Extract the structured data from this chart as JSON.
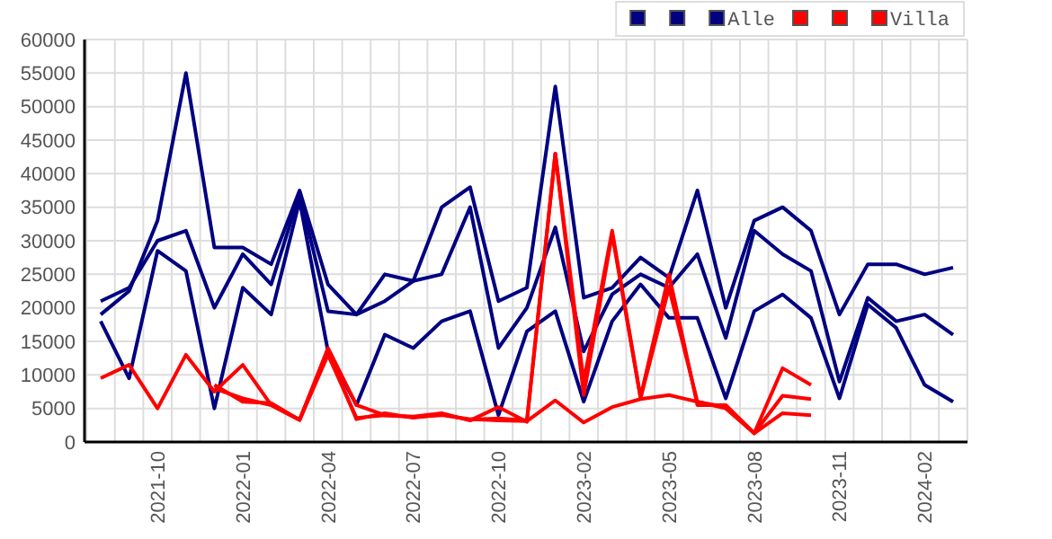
{
  "chart_data": {
    "type": "line",
    "categories": [
      null,
      null,
      "2021-10",
      null,
      null,
      "2022-01",
      null,
      null,
      "2022-04",
      null,
      null,
      "2022-07",
      null,
      null,
      "2022-10",
      null,
      null,
      "2023-02",
      null,
      null,
      "2023-05",
      null,
      null,
      "2023-08",
      null,
      null,
      "2023-11",
      null,
      null,
      "2024-02",
      null
    ],
    "series": [
      {
        "color": "#000080",
        "values": [
          19000,
          22500,
          33000,
          55000,
          29000,
          29000,
          26500,
          37500,
          23500,
          19000,
          21000,
          24000,
          35000,
          38000,
          21000,
          23000,
          53000,
          21500,
          23000,
          27500,
          24500,
          37500,
          20000,
          33000,
          35000,
          31500,
          19000,
          26500,
          26500,
          25000,
          26000
        ]
      },
      {
        "color": "#000080",
        "values": [
          21000,
          23000,
          30000,
          31500,
          20000,
          28000,
          23500,
          37000,
          19500,
          19000,
          25000,
          24000,
          25000,
          35000,
          14000,
          20000,
          32000,
          13500,
          22000,
          25000,
          23000,
          28000,
          15500,
          31500,
          28000,
          25500,
          9000,
          21500,
          18000,
          19000,
          16000
        ]
      },
      {
        "name": "Alle",
        "color": "#000080",
        "values": [
          18000,
          9500,
          28500,
          25500,
          5000,
          23000,
          19000,
          36000,
          13500,
          5500,
          16000,
          14000,
          18000,
          19500,
          4000,
          16500,
          19500,
          6000,
          18000,
          23500,
          18500,
          18500,
          6500,
          19500,
          22000,
          18500,
          6500,
          20500,
          17000,
          8500,
          6000
        ]
      },
      {
        "color": "#ff0000",
        "values": [
          9500,
          11500,
          5000,
          13000,
          7500,
          11500,
          5500,
          3300,
          14000,
          5500,
          4000,
          3800,
          4300,
          3200,
          5200,
          3000,
          43000,
          9000,
          31500,
          6700,
          25000,
          5500,
          5500,
          1300,
          11000,
          8500,
          null,
          null,
          null,
          null,
          null
        ]
      },
      {
        "color": "#ff0000",
        "values": [
          null,
          null,
          null,
          null,
          8000,
          6500,
          5500,
          3300,
          13500,
          3400,
          4300,
          3600,
          4100,
          3300,
          3500,
          3200,
          43000,
          7000,
          31000,
          6500,
          23000,
          6000,
          5000,
          1300,
          6900,
          6400,
          null,
          null,
          null,
          null,
          null
        ]
      },
      {
        "name": "Villa",
        "color": "#ff0000",
        "values": [
          null,
          null,
          null,
          null,
          8500,
          6000,
          5800,
          3300,
          13000,
          3600,
          4000,
          3700,
          4000,
          3400,
          3200,
          3100,
          6200,
          2900,
          5200,
          6400,
          7000,
          6000,
          5200,
          1300,
          4300,
          4000,
          null,
          null,
          null,
          null,
          null
        ]
      }
    ],
    "ylim": [
      0,
      60000
    ],
    "yticks": [
      0,
      5000,
      10000,
      15000,
      20000,
      25000,
      30000,
      35000,
      40000,
      45000,
      50000,
      55000,
      60000
    ],
    "grid": true,
    "legend": "top right"
  }
}
